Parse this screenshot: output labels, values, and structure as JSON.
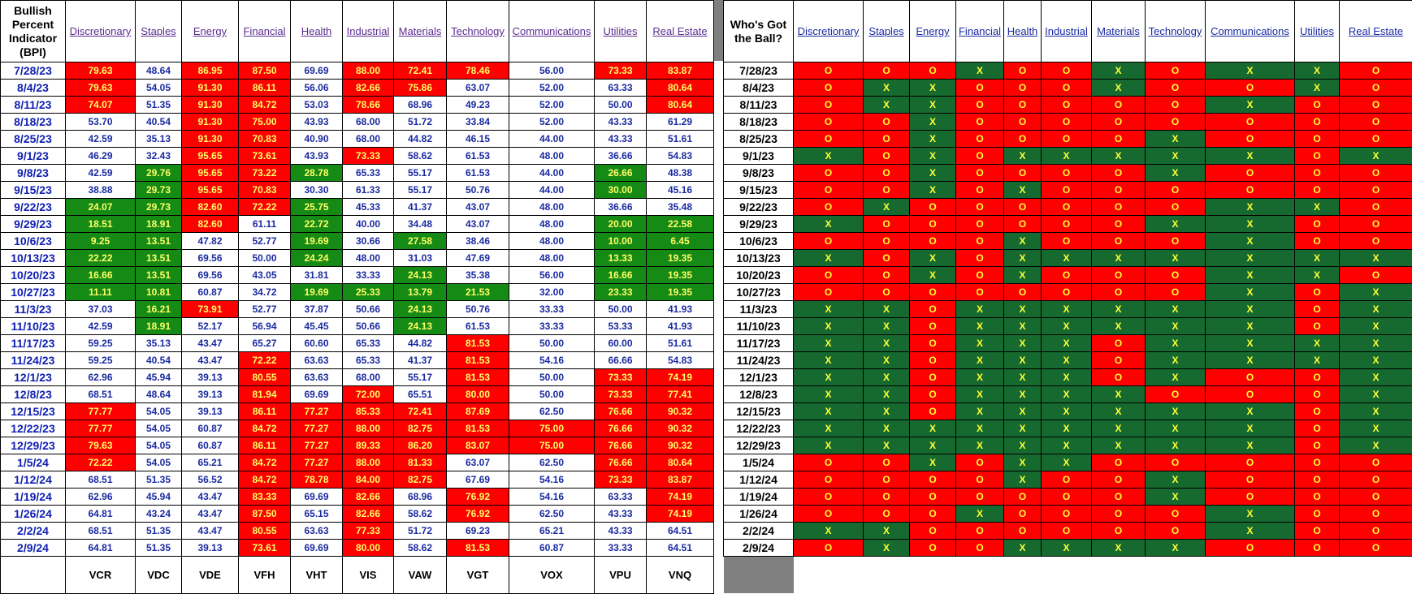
{
  "bpi_header": "Bullish Percent Indicator (BPI)",
  "ball_header": "Who's Got the Ball?",
  "sectors": [
    "Discretionary",
    "Staples",
    "Energy",
    "Financial",
    "Health",
    "Industrial",
    "Materials",
    "Technology",
    "Communications",
    "Utilities",
    "Real Estate"
  ],
  "tickers": [
    "VCR",
    "VDC",
    "VDE",
    "VFH",
    "VHT",
    "VIS",
    "VAW",
    "VGT",
    "VOX",
    "VPU",
    "VNQ"
  ],
  "colors": {
    "red": "#ff0000",
    "green": "#158a15",
    "white": "#ffffff",
    "value_text": "#1a2aa0",
    "highlight_text": "#ffff66"
  },
  "rows": [
    {
      "date": "7/28/23",
      "bpi": [
        "79.63",
        "48.64",
        "86.95",
        "87.50",
        "69.69",
        "88.00",
        "72.41",
        "78.46",
        "56.00",
        "73.33",
        "83.87"
      ],
      "bpi_color": [
        "r",
        "w",
        "r",
        "r",
        "w",
        "r",
        "r",
        "r",
        "w",
        "r",
        "r"
      ],
      "ball": [
        "O",
        "O",
        "O",
        "X",
        "O",
        "O",
        "X",
        "O",
        "X",
        "X",
        "O"
      ]
    },
    {
      "date": "8/4/23",
      "bpi": [
        "79.63",
        "54.05",
        "91.30",
        "86.11",
        "56.06",
        "82.66",
        "75.86",
        "63.07",
        "52.00",
        "63.33",
        "80.64"
      ],
      "bpi_color": [
        "r",
        "w",
        "r",
        "r",
        "w",
        "r",
        "r",
        "w",
        "w",
        "w",
        "r"
      ],
      "ball": [
        "O",
        "X",
        "X",
        "O",
        "O",
        "O",
        "X",
        "O",
        "O",
        "X",
        "O"
      ]
    },
    {
      "date": "8/11/23",
      "bpi": [
        "74.07",
        "51.35",
        "91.30",
        "84.72",
        "53.03",
        "78.66",
        "68.96",
        "49.23",
        "52.00",
        "50.00",
        "80.64"
      ],
      "bpi_color": [
        "r",
        "w",
        "r",
        "r",
        "w",
        "r",
        "w",
        "w",
        "w",
        "w",
        "r"
      ],
      "ball": [
        "O",
        "X",
        "X",
        "O",
        "O",
        "O",
        "O",
        "O",
        "X",
        "O",
        "O"
      ]
    },
    {
      "date": "8/18/23",
      "bpi": [
        "53.70",
        "40.54",
        "91.30",
        "75.00",
        "43.93",
        "68.00",
        "51.72",
        "33.84",
        "52.00",
        "43.33",
        "61.29"
      ],
      "bpi_color": [
        "w",
        "w",
        "r",
        "r",
        "w",
        "w",
        "w",
        "w",
        "w",
        "w",
        "w"
      ],
      "ball": [
        "O",
        "O",
        "X",
        "O",
        "O",
        "O",
        "O",
        "O",
        "O",
        "O",
        "O"
      ]
    },
    {
      "date": "8/25/23",
      "bpi": [
        "42.59",
        "35.13",
        "91.30",
        "70.83",
        "40.90",
        "68.00",
        "44.82",
        "46.15",
        "44.00",
        "43.33",
        "51.61"
      ],
      "bpi_color": [
        "w",
        "w",
        "r",
        "r",
        "w",
        "w",
        "w",
        "w",
        "w",
        "w",
        "w"
      ],
      "ball": [
        "O",
        "O",
        "X",
        "O",
        "O",
        "O",
        "O",
        "X",
        "O",
        "O",
        "O"
      ]
    },
    {
      "date": "9/1/23",
      "bpi": [
        "46.29",
        "32.43",
        "95.65",
        "73.61",
        "43.93",
        "73.33",
        "58.62",
        "61.53",
        "48.00",
        "36.66",
        "54.83"
      ],
      "bpi_color": [
        "w",
        "w",
        "r",
        "r",
        "w",
        "r",
        "w",
        "w",
        "w",
        "w",
        "w"
      ],
      "ball": [
        "X",
        "O",
        "X",
        "O",
        "X",
        "X",
        "X",
        "X",
        "X",
        "O",
        "X"
      ]
    },
    {
      "date": "9/8/23",
      "bpi": [
        "42.59",
        "29.76",
        "95.65",
        "73.22",
        "28.78",
        "65.33",
        "55.17",
        "61.53",
        "44.00",
        "26.66",
        "48.38"
      ],
      "bpi_color": [
        "w",
        "g",
        "r",
        "r",
        "g",
        "w",
        "w",
        "w",
        "w",
        "g",
        "w"
      ],
      "ball": [
        "O",
        "O",
        "X",
        "O",
        "O",
        "O",
        "O",
        "X",
        "O",
        "O",
        "O"
      ]
    },
    {
      "date": "9/15/23",
      "bpi": [
        "38.88",
        "29.73",
        "95.65",
        "70.83",
        "30.30",
        "61.33",
        "55.17",
        "50.76",
        "44.00",
        "30.00",
        "45.16"
      ],
      "bpi_color": [
        "w",
        "g",
        "r",
        "r",
        "w",
        "w",
        "w",
        "w",
        "w",
        "g",
        "w"
      ],
      "ball": [
        "O",
        "O",
        "X",
        "O",
        "X",
        "O",
        "O",
        "O",
        "O",
        "O",
        "O"
      ]
    },
    {
      "date": "9/22/23",
      "bpi": [
        "24.07",
        "29.73",
        "82.60",
        "72.22",
        "25.75",
        "45.33",
        "41.37",
        "43.07",
        "48.00",
        "36.66",
        "35.48"
      ],
      "bpi_color": [
        "g",
        "g",
        "r",
        "r",
        "g",
        "w",
        "w",
        "w",
        "w",
        "w",
        "w"
      ],
      "ball": [
        "O",
        "X",
        "O",
        "O",
        "O",
        "O",
        "O",
        "O",
        "X",
        "X",
        "O"
      ]
    },
    {
      "date": "9/29/23",
      "bpi": [
        "18.51",
        "18.91",
        "82.60",
        "61.11",
        "22.72",
        "40.00",
        "34.48",
        "43.07",
        "48.00",
        "20.00",
        "22.58"
      ],
      "bpi_color": [
        "g",
        "g",
        "r",
        "w",
        "g",
        "w",
        "w",
        "w",
        "w",
        "g",
        "g"
      ],
      "ball": [
        "X",
        "O",
        "O",
        "O",
        "O",
        "O",
        "O",
        "X",
        "X",
        "O",
        "O"
      ]
    },
    {
      "date": "10/6/23",
      "bpi": [
        "9.25",
        "13.51",
        "47.82",
        "52.77",
        "19.69",
        "30.66",
        "27.58",
        "38.46",
        "48.00",
        "10.00",
        "6.45"
      ],
      "bpi_color": [
        "g",
        "g",
        "w",
        "w",
        "g",
        "w",
        "g",
        "w",
        "w",
        "g",
        "g"
      ],
      "ball": [
        "O",
        "O",
        "O",
        "O",
        "X",
        "O",
        "O",
        "O",
        "X",
        "O",
        "O"
      ]
    },
    {
      "date": "10/13/23",
      "bpi": [
        "22.22",
        "13.51",
        "69.56",
        "50.00",
        "24.24",
        "48.00",
        "31.03",
        "47.69",
        "48.00",
        "13.33",
        "19.35"
      ],
      "bpi_color": [
        "g",
        "g",
        "w",
        "w",
        "g",
        "w",
        "w",
        "w",
        "w",
        "g",
        "g"
      ],
      "ball": [
        "X",
        "O",
        "X",
        "O",
        "X",
        "X",
        "X",
        "X",
        "X",
        "X",
        "X"
      ]
    },
    {
      "date": "10/20/23",
      "bpi": [
        "16.66",
        "13.51",
        "69.56",
        "43.05",
        "31.81",
        "33.33",
        "24.13",
        "35.38",
        "56.00",
        "16.66",
        "19.35"
      ],
      "bpi_color": [
        "g",
        "g",
        "w",
        "w",
        "w",
        "w",
        "g",
        "w",
        "w",
        "g",
        "g"
      ],
      "ball": [
        "O",
        "O",
        "X",
        "O",
        "X",
        "O",
        "O",
        "O",
        "X",
        "X",
        "O"
      ]
    },
    {
      "date": "10/27/23",
      "bpi": [
        "11.11",
        "10.81",
        "60.87",
        "34.72",
        "19.69",
        "25.33",
        "13.79",
        "21.53",
        "32.00",
        "23.33",
        "19.35"
      ],
      "bpi_color": [
        "g",
        "g",
        "w",
        "w",
        "g",
        "g",
        "g",
        "g",
        "w",
        "g",
        "g"
      ],
      "ball": [
        "O",
        "O",
        "O",
        "O",
        "O",
        "O",
        "O",
        "O",
        "X",
        "O",
        "X"
      ]
    },
    {
      "date": "11/3/23",
      "bpi": [
        "37.03",
        "16.21",
        "73.91",
        "52.77",
        "37.87",
        "50.66",
        "24.13",
        "50.76",
        "33.33",
        "50.00",
        "41.93"
      ],
      "bpi_color": [
        "w",
        "g",
        "r",
        "w",
        "w",
        "w",
        "g",
        "w",
        "w",
        "w",
        "w"
      ],
      "ball": [
        "X",
        "X",
        "O",
        "X",
        "X",
        "X",
        "X",
        "X",
        "X",
        "O",
        "X"
      ]
    },
    {
      "date": "11/10/23",
      "bpi": [
        "42.59",
        "18.91",
        "52.17",
        "56.94",
        "45.45",
        "50.66",
        "24.13",
        "61.53",
        "33.33",
        "53.33",
        "41.93"
      ],
      "bpi_color": [
        "w",
        "g",
        "w",
        "w",
        "w",
        "w",
        "g",
        "w",
        "w",
        "w",
        "w"
      ],
      "ball": [
        "X",
        "X",
        "O",
        "X",
        "X",
        "X",
        "X",
        "X",
        "X",
        "O",
        "X"
      ]
    },
    {
      "date": "11/17/23",
      "bpi": [
        "59.25",
        "35.13",
        "43.47",
        "65.27",
        "60.60",
        "65.33",
        "44.82",
        "81.53",
        "50.00",
        "60.00",
        "51.61"
      ],
      "bpi_color": [
        "w",
        "w",
        "w",
        "w",
        "w",
        "w",
        "w",
        "r",
        "w",
        "w",
        "w"
      ],
      "ball": [
        "X",
        "X",
        "O",
        "X",
        "X",
        "X",
        "O",
        "X",
        "X",
        "X",
        "X"
      ]
    },
    {
      "date": "11/24/23",
      "bpi": [
        "59.25",
        "40.54",
        "43.47",
        "72.22",
        "63.63",
        "65.33",
        "41.37",
        "81.53",
        "54.16",
        "66.66",
        "54.83"
      ],
      "bpi_color": [
        "w",
        "w",
        "w",
        "r",
        "w",
        "w",
        "w",
        "r",
        "w",
        "w",
        "w"
      ],
      "ball": [
        "X",
        "X",
        "O",
        "X",
        "X",
        "X",
        "O",
        "X",
        "X",
        "X",
        "X"
      ]
    },
    {
      "date": "12/1/23",
      "bpi": [
        "62.96",
        "45.94",
        "39.13",
        "80.55",
        "63.63",
        "68.00",
        "55.17",
        "81.53",
        "50.00",
        "73.33",
        "74.19"
      ],
      "bpi_color": [
        "w",
        "w",
        "w",
        "r",
        "w",
        "w",
        "w",
        "r",
        "w",
        "r",
        "r"
      ],
      "ball": [
        "X",
        "X",
        "O",
        "X",
        "X",
        "X",
        "O",
        "X",
        "O",
        "O",
        "X"
      ]
    },
    {
      "date": "12/8/23",
      "bpi": [
        "68.51",
        "48.64",
        "39.13",
        "81.94",
        "69.69",
        "72.00",
        "65.51",
        "80.00",
        "50.00",
        "73.33",
        "77.41"
      ],
      "bpi_color": [
        "w",
        "w",
        "w",
        "r",
        "w",
        "r",
        "w",
        "r",
        "w",
        "r",
        "r"
      ],
      "ball": [
        "X",
        "X",
        "O",
        "X",
        "X",
        "X",
        "X",
        "O",
        "O",
        "O",
        "X"
      ]
    },
    {
      "date": "12/15/23",
      "bpi": [
        "77.77",
        "54.05",
        "39.13",
        "86.11",
        "77.27",
        "85.33",
        "72.41",
        "87.69",
        "62.50",
        "76.66",
        "90.32"
      ],
      "bpi_color": [
        "r",
        "w",
        "w",
        "r",
        "r",
        "r",
        "r",
        "r",
        "w",
        "r",
        "r"
      ],
      "ball": [
        "X",
        "X",
        "O",
        "X",
        "X",
        "X",
        "X",
        "X",
        "X",
        "O",
        "X"
      ]
    },
    {
      "date": "12/22/23",
      "bpi": [
        "77.77",
        "54.05",
        "60.87",
        "84.72",
        "77.27",
        "88.00",
        "82.75",
        "81.53",
        "75.00",
        "76.66",
        "90.32"
      ],
      "bpi_color": [
        "r",
        "w",
        "w",
        "r",
        "r",
        "r",
        "r",
        "r",
        "r",
        "r",
        "r"
      ],
      "ball": [
        "X",
        "X",
        "X",
        "X",
        "X",
        "X",
        "X",
        "X",
        "X",
        "O",
        "X"
      ]
    },
    {
      "date": "12/29/23",
      "bpi": [
        "79.63",
        "54.05",
        "60.87",
        "86.11",
        "77.27",
        "89.33",
        "86.20",
        "83.07",
        "75.00",
        "76.66",
        "90.32"
      ],
      "bpi_color": [
        "r",
        "w",
        "w",
        "r",
        "r",
        "r",
        "r",
        "r",
        "r",
        "r",
        "r"
      ],
      "ball": [
        "X",
        "X",
        "X",
        "X",
        "X",
        "X",
        "X",
        "X",
        "X",
        "O",
        "X"
      ]
    },
    {
      "date": "1/5/24",
      "bpi": [
        "72.22",
        "54.05",
        "65.21",
        "84.72",
        "77.27",
        "88.00",
        "81.33",
        "63.07",
        "62.50",
        "76.66",
        "80.64"
      ],
      "bpi_color": [
        "r",
        "w",
        "w",
        "r",
        "r",
        "r",
        "r",
        "w",
        "w",
        "r",
        "r"
      ],
      "ball": [
        "O",
        "O",
        "X",
        "O",
        "X",
        "X",
        "O",
        "O",
        "O",
        "O",
        "O"
      ]
    },
    {
      "date": "1/12/24",
      "bpi": [
        "68.51",
        "51.35",
        "56.52",
        "84.72",
        "78.78",
        "84.00",
        "82.75",
        "67.69",
        "54.16",
        "73.33",
        "83.87"
      ],
      "bpi_color": [
        "w",
        "w",
        "w",
        "r",
        "r",
        "r",
        "r",
        "w",
        "w",
        "r",
        "r"
      ],
      "ball": [
        "O",
        "O",
        "O",
        "O",
        "X",
        "O",
        "O",
        "X",
        "O",
        "O",
        "O"
      ]
    },
    {
      "date": "1/19/24",
      "bpi": [
        "62.96",
        "45.94",
        "43.47",
        "83.33",
        "69.69",
        "82.66",
        "68.96",
        "76.92",
        "54.16",
        "63.33",
        "74.19"
      ],
      "bpi_color": [
        "w",
        "w",
        "w",
        "r",
        "w",
        "r",
        "w",
        "r",
        "w",
        "w",
        "r"
      ],
      "ball": [
        "O",
        "O",
        "O",
        "O",
        "O",
        "O",
        "O",
        "X",
        "O",
        "O",
        "O"
      ]
    },
    {
      "date": "1/26/24",
      "bpi": [
        "64.81",
        "43.24",
        "43.47",
        "87.50",
        "65.15",
        "82.66",
        "58.62",
        "76.92",
        "62.50",
        "43.33",
        "74.19"
      ],
      "bpi_color": [
        "w",
        "w",
        "w",
        "r",
        "w",
        "r",
        "w",
        "r",
        "w",
        "w",
        "r"
      ],
      "ball": [
        "O",
        "O",
        "O",
        "X",
        "O",
        "O",
        "O",
        "O",
        "X",
        "O",
        "O"
      ]
    },
    {
      "date": "2/2/24",
      "bpi": [
        "68.51",
        "51.35",
        "43.47",
        "80.55",
        "63.63",
        "77.33",
        "51.72",
        "69.23",
        "65.21",
        "43.33",
        "64.51"
      ],
      "bpi_color": [
        "w",
        "w",
        "w",
        "r",
        "w",
        "r",
        "w",
        "w",
        "w",
        "w",
        "w"
      ],
      "ball": [
        "X",
        "X",
        "O",
        "O",
        "O",
        "O",
        "O",
        "O",
        "X",
        "O",
        "O"
      ]
    },
    {
      "date": "2/9/24",
      "bpi": [
        "64.81",
        "51.35",
        "39.13",
        "73.61",
        "69.69",
        "80.00",
        "58.62",
        "81.53",
        "60.87",
        "33.33",
        "64.51"
      ],
      "bpi_color": [
        "w",
        "w",
        "w",
        "r",
        "w",
        "r",
        "w",
        "r",
        "w",
        "w",
        "w"
      ],
      "ball": [
        "O",
        "X",
        "O",
        "O",
        "X",
        "X",
        "X",
        "X",
        "O",
        "O",
        "O"
      ]
    }
  ]
}
